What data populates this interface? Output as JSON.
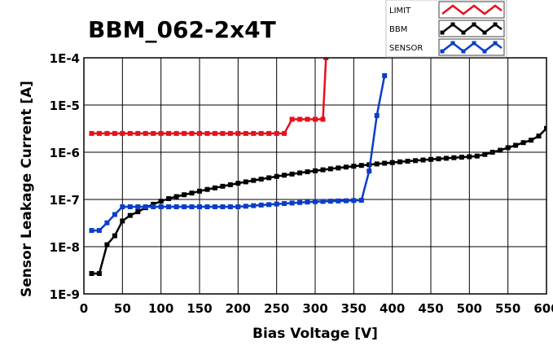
{
  "chart_data": {
    "type": "line",
    "title": "BBM_062-2x4T",
    "xlabel": "Bias Voltage [V]",
    "ylabel": "Sensor Leakage Current [A]",
    "xlim": [
      0,
      600
    ],
    "ylim": [
      1e-09,
      0.0001
    ],
    "yscale": "log",
    "grid": true,
    "legend_position": "top-right",
    "x_ticks": [
      "0",
      "50",
      "100",
      "150",
      "200",
      "250",
      "300",
      "350",
      "400",
      "450",
      "500",
      "550",
      "600"
    ],
    "y_ticks": [
      "1E-9",
      "1E-8",
      "1E-7",
      "1E-6",
      "1E-5",
      "1E-4"
    ],
    "series": [
      {
        "name": "LIMIT",
        "color": "#e8101c",
        "points": [
          [
            10,
            2.5e-06
          ],
          [
            20,
            2.5e-06
          ],
          [
            30,
            2.5e-06
          ],
          [
            40,
            2.5e-06
          ],
          [
            50,
            2.5e-06
          ],
          [
            60,
            2.5e-06
          ],
          [
            70,
            2.5e-06
          ],
          [
            80,
            2.5e-06
          ],
          [
            90,
            2.5e-06
          ],
          [
            100,
            2.5e-06
          ],
          [
            110,
            2.5e-06
          ],
          [
            120,
            2.5e-06
          ],
          [
            130,
            2.5e-06
          ],
          [
            140,
            2.5e-06
          ],
          [
            150,
            2.5e-06
          ],
          [
            160,
            2.5e-06
          ],
          [
            170,
            2.5e-06
          ],
          [
            180,
            2.5e-06
          ],
          [
            190,
            2.5e-06
          ],
          [
            200,
            2.5e-06
          ],
          [
            210,
            2.5e-06
          ],
          [
            220,
            2.5e-06
          ],
          [
            230,
            2.5e-06
          ],
          [
            240,
            2.5e-06
          ],
          [
            250,
            2.5e-06
          ],
          [
            260,
            2.5e-06
          ],
          [
            270,
            5e-06
          ],
          [
            280,
            5e-06
          ],
          [
            290,
            5e-06
          ],
          [
            300,
            5e-06
          ],
          [
            310,
            5e-06
          ],
          [
            314,
            0.0001
          ]
        ]
      },
      {
        "name": "BBM",
        "color": "#000000",
        "points": [
          [
            10,
            2.7e-09
          ],
          [
            20,
            2.7e-09
          ],
          [
            30,
            1.1e-08
          ],
          [
            40,
            1.7e-08
          ],
          [
            50,
            3.5e-08
          ],
          [
            60,
            4.6e-08
          ],
          [
            70,
            5.5e-08
          ],
          [
            80,
            6.7e-08
          ],
          [
            90,
            7.9e-08
          ],
          [
            100,
            9.2e-08
          ],
          [
            110,
            1.04e-07
          ],
          [
            120,
            1.15e-07
          ],
          [
            130,
            1.26e-07
          ],
          [
            140,
            1.37e-07
          ],
          [
            150,
            1.5e-07
          ],
          [
            160,
            1.63e-07
          ],
          [
            170,
            1.76e-07
          ],
          [
            180,
            1.9e-07
          ],
          [
            190,
            2.05e-07
          ],
          [
            200,
            2.2e-07
          ],
          [
            210,
            2.36e-07
          ],
          [
            220,
            2.53e-07
          ],
          [
            230,
            2.7e-07
          ],
          [
            240,
            2.88e-07
          ],
          [
            250,
            3.07e-07
          ],
          [
            260,
            3.26e-07
          ],
          [
            270,
            3.45e-07
          ],
          [
            280,
            3.65e-07
          ],
          [
            290,
            3.85e-07
          ],
          [
            300,
            4.05e-07
          ],
          [
            310,
            4.25e-07
          ],
          [
            320,
            4.45e-07
          ],
          [
            330,
            4.65e-07
          ],
          [
            340,
            4.85e-07
          ],
          [
            350,
            5.05e-07
          ],
          [
            360,
            5.25e-07
          ],
          [
            370,
            5.45e-07
          ],
          [
            380,
            5.65e-07
          ],
          [
            390,
            5.85e-07
          ],
          [
            400,
            6.05e-07
          ],
          [
            410,
            6.25e-07
          ],
          [
            420,
            6.45e-07
          ],
          [
            430,
            6.65e-07
          ],
          [
            440,
            6.85e-07
          ],
          [
            450,
            7.05e-07
          ],
          [
            460,
            7.25e-07
          ],
          [
            470,
            7.45e-07
          ],
          [
            480,
            7.65e-07
          ],
          [
            490,
            7.85e-07
          ],
          [
            500,
            8.05e-07
          ],
          [
            510,
            8.3e-07
          ],
          [
            520,
            9e-07
          ],
          [
            530,
            1e-06
          ],
          [
            540,
            1.1e-06
          ],
          [
            550,
            1.25e-06
          ],
          [
            560,
            1.4e-06
          ],
          [
            570,
            1.6e-06
          ],
          [
            580,
            1.8e-06
          ],
          [
            590,
            2.2e-06
          ],
          [
            600,
            3.2e-06
          ]
        ]
      },
      {
        "name": "SENSOR",
        "color": "#0a3ec8",
        "points": [
          [
            10,
            2.2e-08
          ],
          [
            20,
            2.2e-08
          ],
          [
            30,
            3.2e-08
          ],
          [
            40,
            4.8e-08
          ],
          [
            50,
            7e-08
          ],
          [
            60,
            7e-08
          ],
          [
            70,
            7e-08
          ],
          [
            80,
            7e-08
          ],
          [
            90,
            7e-08
          ],
          [
            100,
            7e-08
          ],
          [
            110,
            7e-08
          ],
          [
            120,
            7e-08
          ],
          [
            130,
            7e-08
          ],
          [
            140,
            7e-08
          ],
          [
            150,
            7e-08
          ],
          [
            160,
            7e-08
          ],
          [
            170,
            7e-08
          ],
          [
            180,
            7e-08
          ],
          [
            190,
            7e-08
          ],
          [
            200,
            7e-08
          ],
          [
            210,
            7.2e-08
          ],
          [
            220,
            7.4e-08
          ],
          [
            230,
            7.6e-08
          ],
          [
            240,
            7.8e-08
          ],
          [
            250,
            8e-08
          ],
          [
            260,
            8.2e-08
          ],
          [
            270,
            8.4e-08
          ],
          [
            280,
            8.6e-08
          ],
          [
            290,
            8.8e-08
          ],
          [
            300,
            9e-08
          ],
          [
            310,
            9.1e-08
          ],
          [
            320,
            9.2e-08
          ],
          [
            330,
            9.3e-08
          ],
          [
            340,
            9.4e-08
          ],
          [
            350,
            9.5e-08
          ],
          [
            360,
            9.6e-08
          ],
          [
            370,
            4e-07
          ],
          [
            380,
            6e-06
          ],
          [
            390,
            4.2e-05
          ]
        ]
      }
    ]
  }
}
